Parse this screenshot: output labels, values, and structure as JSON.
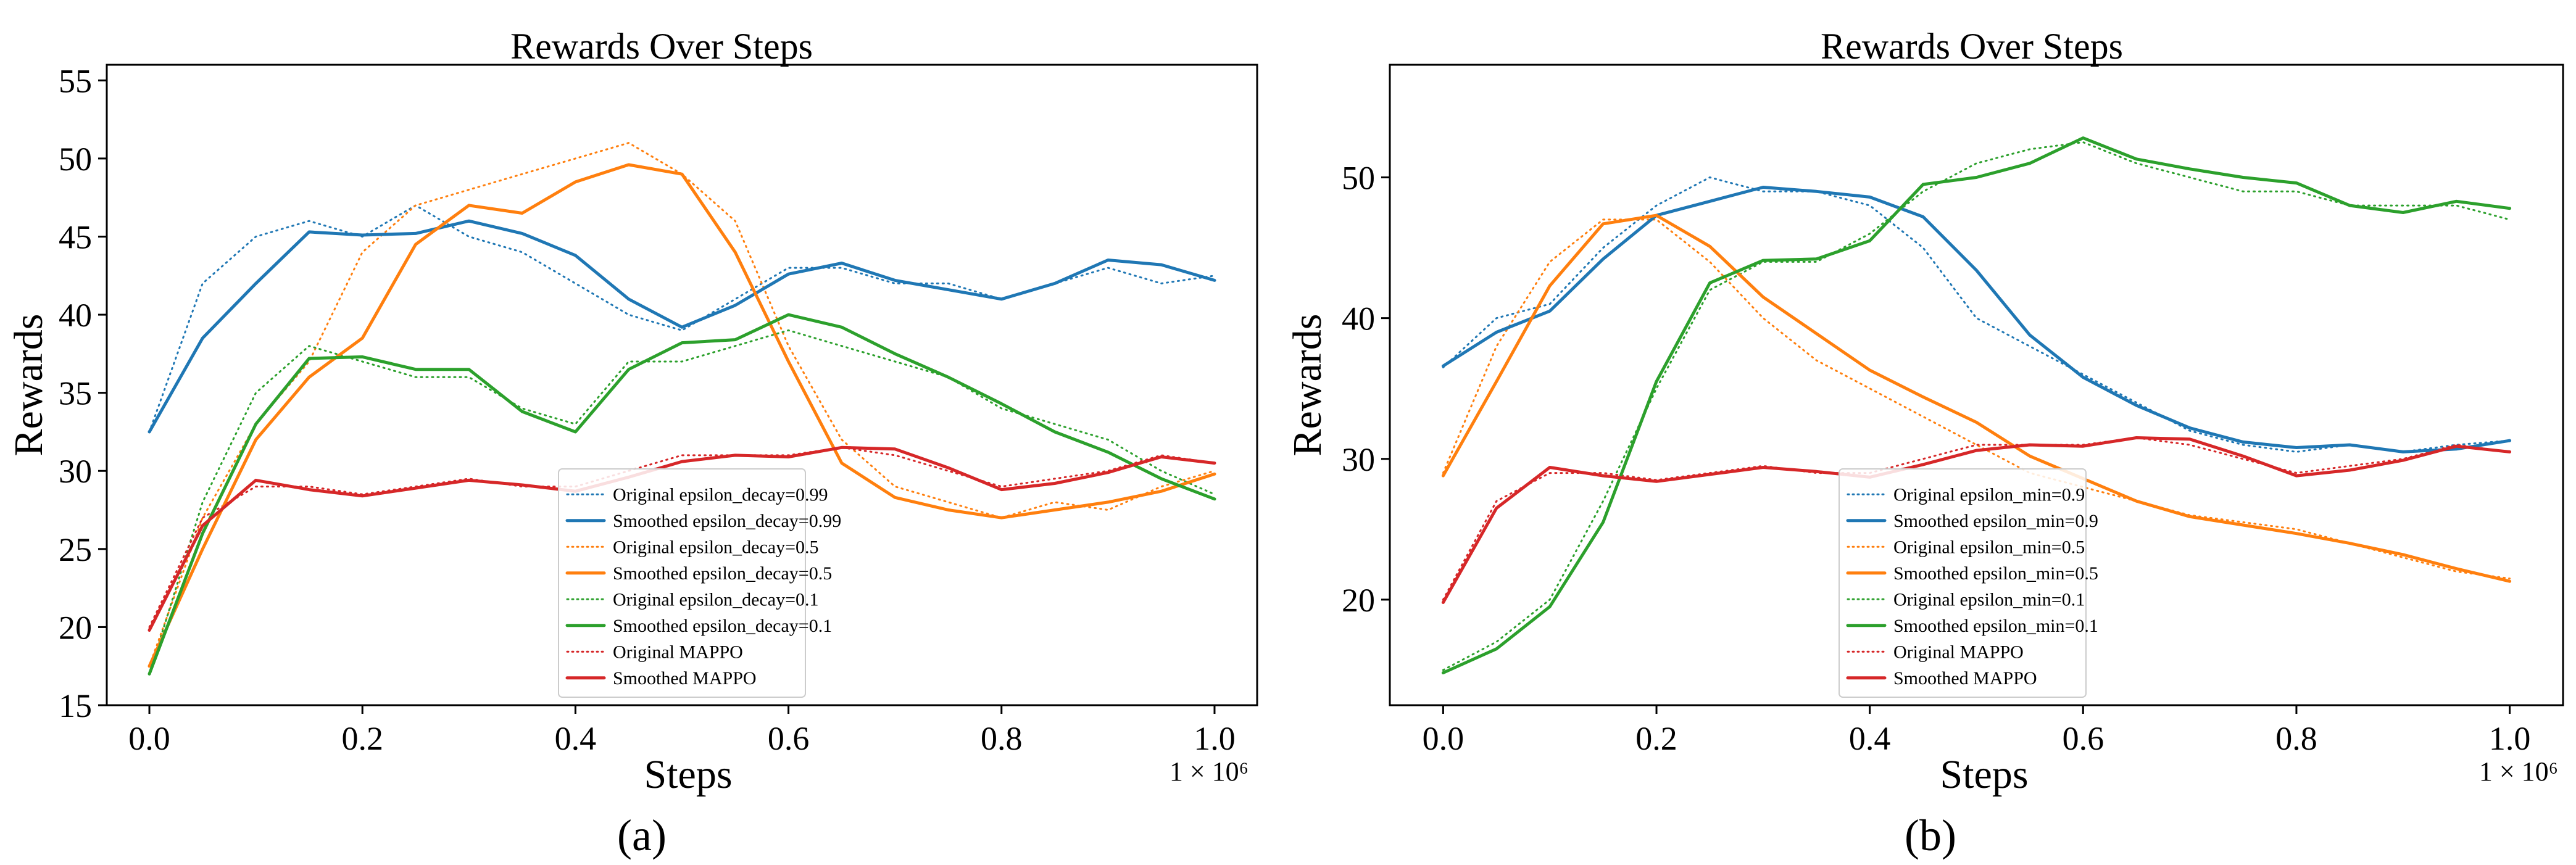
{
  "colors": {
    "blue": "#1f77b4",
    "orange": "#ff7f0e",
    "green": "#2ca02c",
    "red": "#d62728"
  },
  "panel_labels": [
    "(a)",
    "(b)"
  ],
  "chart_data": [
    {
      "type": "line",
      "title": "Rewards Over Steps",
      "xlabel": "Steps",
      "ylabel": "Rewards",
      "x_multiplier_label": "1 × 10⁶",
      "xlim": [
        -0.04,
        1.04
      ],
      "ylim": [
        15,
        56
      ],
      "xticks": [
        0.0,
        0.2,
        0.4,
        0.6,
        0.8,
        1.0
      ],
      "xtick_labels": [
        "0.0",
        "0.2",
        "0.4",
        "0.6",
        "0.8",
        "1.0"
      ],
      "yticks": [
        15,
        20,
        25,
        30,
        35,
        40,
        45,
        50,
        55
      ],
      "ytick_labels": [
        "15",
        "20",
        "25",
        "30",
        "35",
        "40",
        "45",
        "50",
        "55"
      ],
      "grid": false,
      "legend_position": "lower-center",
      "x": [
        0.0,
        0.05,
        0.1,
        0.15,
        0.2,
        0.25,
        0.3,
        0.35,
        0.4,
        0.45,
        0.5,
        0.55,
        0.6,
        0.65,
        0.7,
        0.75,
        0.8,
        0.85,
        0.9,
        0.95,
        1.0
      ],
      "series": [
        {
          "name": "Original epsilon_decay=0.99",
          "style": "dotted",
          "color": "blue",
          "values": [
            32.5,
            42,
            45,
            46,
            45,
            47,
            45,
            44,
            42,
            40,
            39,
            41,
            43,
            43,
            42,
            42,
            41,
            42,
            43,
            42,
            42.5
          ]
        },
        {
          "name": "Smoothed epsilon_decay=0.99",
          "style": "solid",
          "color": "blue",
          "values": [
            32.5,
            38.5,
            42,
            45.3,
            45.1,
            45.2,
            46,
            45.2,
            43.8,
            41,
            39.2,
            40.6,
            42.6,
            43.3,
            42.2,
            41.6,
            41,
            42,
            43.5,
            43.2,
            42.2
          ]
        },
        {
          "name": "Original epsilon_decay=0.5",
          "style": "dotted",
          "color": "orange",
          "values": [
            17.5,
            27,
            33,
            37,
            44,
            47,
            48,
            49,
            50,
            51,
            49,
            46,
            38,
            32,
            29,
            28,
            27,
            28,
            27.5,
            29,
            30
          ]
        },
        {
          "name": "Smoothed epsilon_decay=0.5",
          "style": "solid",
          "color": "orange",
          "values": [
            17.5,
            25,
            32,
            36,
            38.5,
            44.5,
            47,
            46.5,
            48.5,
            49.6,
            49,
            44,
            37,
            30.5,
            28.3,
            27.5,
            27,
            27.5,
            28,
            28.7,
            29.8
          ]
        },
        {
          "name": "Original epsilon_decay=0.1",
          "style": "dotted",
          "color": "green",
          "values": [
            17,
            28,
            35,
            38,
            37,
            36,
            36,
            34,
            33,
            37,
            37,
            38,
            39,
            38,
            37,
            36,
            34,
            33,
            32,
            30,
            28.5
          ]
        },
        {
          "name": "Smoothed epsilon_decay=0.1",
          "style": "solid",
          "color": "green",
          "values": [
            17,
            26,
            33,
            37.2,
            37.3,
            36.5,
            36.5,
            33.8,
            32.5,
            36.5,
            38.2,
            38.4,
            40,
            39.2,
            37.5,
            36,
            34.3,
            32.5,
            31.2,
            29.5,
            28.2
          ]
        },
        {
          "name": "Original MAPPO",
          "style": "dotted",
          "color": "red",
          "values": [
            20,
            27,
            29,
            29,
            28.5,
            29,
            29.5,
            29,
            29,
            30,
            31,
            31,
            31,
            31.5,
            31,
            30,
            29,
            29.5,
            30,
            31,
            30.5
          ]
        },
        {
          "name": "Smoothed MAPPO",
          "style": "solid",
          "color": "red",
          "values": [
            19.8,
            26.5,
            29.4,
            28.8,
            28.4,
            28.9,
            29.4,
            29.1,
            28.7,
            29.6,
            30.6,
            31,
            30.9,
            31.5,
            31.4,
            30.2,
            28.8,
            29.2,
            29.9,
            30.9,
            30.5
          ]
        }
      ]
    },
    {
      "type": "line",
      "title": "Rewards Over Steps",
      "xlabel": "Steps",
      "ylabel": "Rewards",
      "x_multiplier_label": "1 × 10⁶",
      "xlim": [
        -0.05,
        1.05
      ],
      "ylim": [
        12.5,
        58
      ],
      "xticks": [
        0.0,
        0.2,
        0.4,
        0.6,
        0.8,
        1.0
      ],
      "xtick_labels": [
        "0.0",
        "0.2",
        "0.4",
        "0.6",
        "0.8",
        "1.0"
      ],
      "yticks": [
        20,
        30,
        40,
        50
      ],
      "ytick_labels": [
        "20",
        "30",
        "40",
        "50"
      ],
      "grid": false,
      "legend_position": "lower-center",
      "x": [
        0.0,
        0.05,
        0.1,
        0.15,
        0.2,
        0.25,
        0.3,
        0.35,
        0.4,
        0.45,
        0.5,
        0.55,
        0.6,
        0.65,
        0.7,
        0.75,
        0.8,
        0.85,
        0.9,
        0.95,
        1.0
      ],
      "series": [
        {
          "name": "Original epsilon_min=0.9",
          "style": "dotted",
          "color": "blue",
          "values": [
            36.5,
            40,
            41,
            45,
            48,
            50,
            49,
            49,
            48,
            45,
            40,
            38,
            36,
            34,
            32,
            31,
            30.5,
            31,
            30.5,
            31,
            31.3
          ]
        },
        {
          "name": "Smoothed epsilon_min=0.9",
          "style": "solid",
          "color": "blue",
          "values": [
            36.6,
            39,
            40.5,
            44.2,
            47.3,
            48.3,
            49.3,
            49,
            48.6,
            47.2,
            43.4,
            38.8,
            35.8,
            33.8,
            32.2,
            31.2,
            30.8,
            31,
            30.5,
            30.7,
            31.3
          ]
        },
        {
          "name": "Original epsilon_min=0.5",
          "style": "dotted",
          "color": "orange",
          "values": [
            29,
            38,
            44,
            47,
            47,
            44,
            40,
            37,
            35,
            33,
            31,
            29,
            28,
            27,
            26,
            25.5,
            25,
            24,
            23,
            22,
            21.5
          ]
        },
        {
          "name": "Smoothed epsilon_min=0.5",
          "style": "solid",
          "color": "orange",
          "values": [
            28.8,
            35.5,
            42.3,
            46.7,
            47.3,
            45.1,
            41.5,
            38.9,
            36.3,
            34.4,
            32.6,
            30.2,
            28.6,
            27,
            25.9,
            25.3,
            24.7,
            24,
            23.2,
            22.2,
            21.3
          ]
        },
        {
          "name": "Original epsilon_min=0.1",
          "style": "dotted",
          "color": "green",
          "values": [
            15,
            17,
            20,
            27,
            35,
            42,
            44,
            44,
            46,
            49,
            51,
            52,
            52.5,
            51,
            50,
            49,
            49,
            48,
            48,
            48,
            47
          ]
        },
        {
          "name": "Smoothed epsilon_min=0.1",
          "style": "solid",
          "color": "green",
          "values": [
            14.8,
            16.5,
            19.5,
            25.5,
            35.5,
            42.5,
            44.1,
            44.2,
            45.5,
            49.5,
            50,
            51,
            52.8,
            51.3,
            50.6,
            50,
            49.6,
            48,
            47.5,
            48.3,
            47.8
          ]
        },
        {
          "name": "Original MAPPO",
          "style": "dotted",
          "color": "red",
          "values": [
            20,
            27,
            29,
            29,
            28.5,
            29,
            29.5,
            29,
            29,
            30,
            31,
            31,
            31,
            31.5,
            31,
            30,
            29,
            29.5,
            30,
            31,
            30.5
          ]
        },
        {
          "name": "Smoothed MAPPO",
          "style": "solid",
          "color": "red",
          "values": [
            19.8,
            26.5,
            29.4,
            28.8,
            28.4,
            28.9,
            29.4,
            29.1,
            28.7,
            29.6,
            30.6,
            31,
            30.9,
            31.5,
            31.4,
            30.2,
            28.8,
            29.2,
            29.9,
            30.9,
            30.5
          ]
        }
      ]
    }
  ]
}
